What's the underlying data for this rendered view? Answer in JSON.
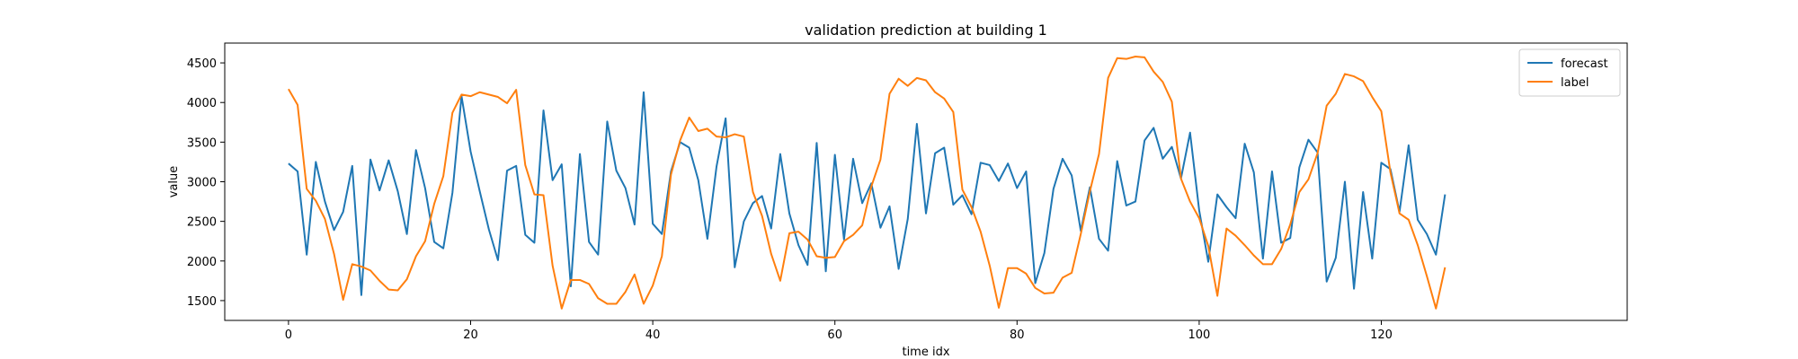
{
  "chart_data": {
    "type": "line",
    "title": "validation prediction at building 1",
    "xlabel": "time idx",
    "ylabel": "value",
    "xlim": [
      -7,
      147
    ],
    "ylim": [
      1250,
      4750
    ],
    "xticks": [
      0,
      20,
      40,
      60,
      80,
      100,
      120
    ],
    "yticks": [
      1500,
      2000,
      2500,
      3000,
      3500,
      4000,
      4500
    ],
    "grid": false,
    "legend_position": "top-right",
    "x": [
      0,
      1,
      2,
      3,
      4,
      5,
      6,
      7,
      8,
      9,
      10,
      11,
      12,
      13,
      14,
      15,
      16,
      17,
      18,
      19,
      20,
      21,
      22,
      23,
      24,
      25,
      26,
      27,
      28,
      29,
      30,
      31,
      32,
      33,
      34,
      35,
      36,
      37,
      38,
      39,
      40,
      41,
      42,
      43,
      44,
      45,
      46,
      47,
      48,
      49,
      50,
      51,
      52,
      53,
      54,
      55,
      56,
      57,
      58,
      59,
      60,
      61,
      62,
      63,
      64,
      65,
      66,
      67,
      68,
      69,
      70,
      71,
      72,
      73,
      74,
      75,
      76,
      77,
      78,
      79,
      80,
      81,
      82,
      83,
      84,
      85,
      86,
      87,
      88,
      89,
      90,
      91,
      92,
      93,
      94,
      95,
      96,
      97,
      98,
      99,
      100,
      101,
      102,
      103,
      104,
      105,
      106,
      107,
      108,
      109,
      110,
      111,
      112,
      113,
      114,
      115,
      116,
      117,
      118,
      119,
      120,
      121,
      122,
      123,
      124,
      125,
      126,
      127
    ],
    "series": [
      {
        "name": "forecast",
        "color": "#1f77b4",
        "values": [
          3230,
          3130,
          2080,
          3250,
          2750,
          2390,
          2620,
          3200,
          1570,
          3280,
          2890,
          3270,
          2880,
          2340,
          3400,
          2920,
          2240,
          2160,
          2860,
          4080,
          3380,
          2880,
          2400,
          2010,
          3140,
          3200,
          2330,
          2230,
          3900,
          3020,
          3220,
          1680,
          3350,
          2240,
          2080,
          3760,
          3140,
          2920,
          2460,
          4130,
          2470,
          2340,
          3130,
          3500,
          3430,
          3020,
          2280,
          3190,
          3800,
          1920,
          2500,
          2730,
          2820,
          2410,
          3350,
          2600,
          2200,
          1950,
          3490,
          1870,
          3340,
          2270,
          3290,
          2730,
          2980,
          2420,
          2690,
          1900,
          2530,
          3730,
          2600,
          3360,
          3430,
          2710,
          2830,
          2590,
          3240,
          3210,
          3010,
          3230,
          2920,
          3130,
          1720,
          2100,
          2910,
          3290,
          3080,
          2380,
          2930,
          2280,
          2130,
          3260,
          2700,
          2750,
          3520,
          3680,
          3290,
          3440,
          3040,
          3620,
          2640,
          1990,
          2840,
          2680,
          2540,
          3480,
          3120,
          2030,
          3130,
          2230,
          2290,
          3180,
          3530,
          3370,
          1740,
          2040,
          3000,
          1650,
          2870,
          2030,
          3240,
          3160,
          2620,
          3460,
          2520,
          2340,
          2080,
          2840
        ]
      },
      {
        "name": "label",
        "color": "#ff7f0e",
        "values": [
          4170,
          3970,
          2910,
          2760,
          2530,
          2090,
          1510,
          1960,
          1930,
          1880,
          1750,
          1640,
          1630,
          1770,
          2060,
          2250,
          2720,
          3070,
          3870,
          4100,
          4080,
          4130,
          4100,
          4070,
          3990,
          4160,
          3210,
          2840,
          2830,
          1940,
          1400,
          1760,
          1760,
          1710,
          1530,
          1460,
          1460,
          1610,
          1830,
          1460,
          1690,
          2060,
          3090,
          3520,
          3810,
          3640,
          3670,
          3570,
          3560,
          3600,
          3570,
          2870,
          2570,
          2090,
          1750,
          2350,
          2370,
          2270,
          2060,
          2040,
          2050,
          2250,
          2330,
          2450,
          2940,
          3280,
          4110,
          4300,
          4210,
          4310,
          4280,
          4130,
          4050,
          3880,
          2900,
          2680,
          2370,
          1940,
          1410,
          1910,
          1910,
          1840,
          1660,
          1590,
          1600,
          1790,
          1850,
          2340,
          2880,
          3350,
          4310,
          4560,
          4550,
          4580,
          4570,
          4390,
          4260,
          4010,
          3040,
          2750,
          2540,
          2190,
          1560,
          2410,
          2320,
          2200,
          2070,
          1960,
          1960,
          2150,
          2460,
          2870,
          3030,
          3360,
          3960,
          4110,
          4360,
          4330,
          4270,
          4070,
          3890,
          3120,
          2600,
          2520,
          2200,
          1810,
          1400,
          1920
        ]
      }
    ]
  }
}
